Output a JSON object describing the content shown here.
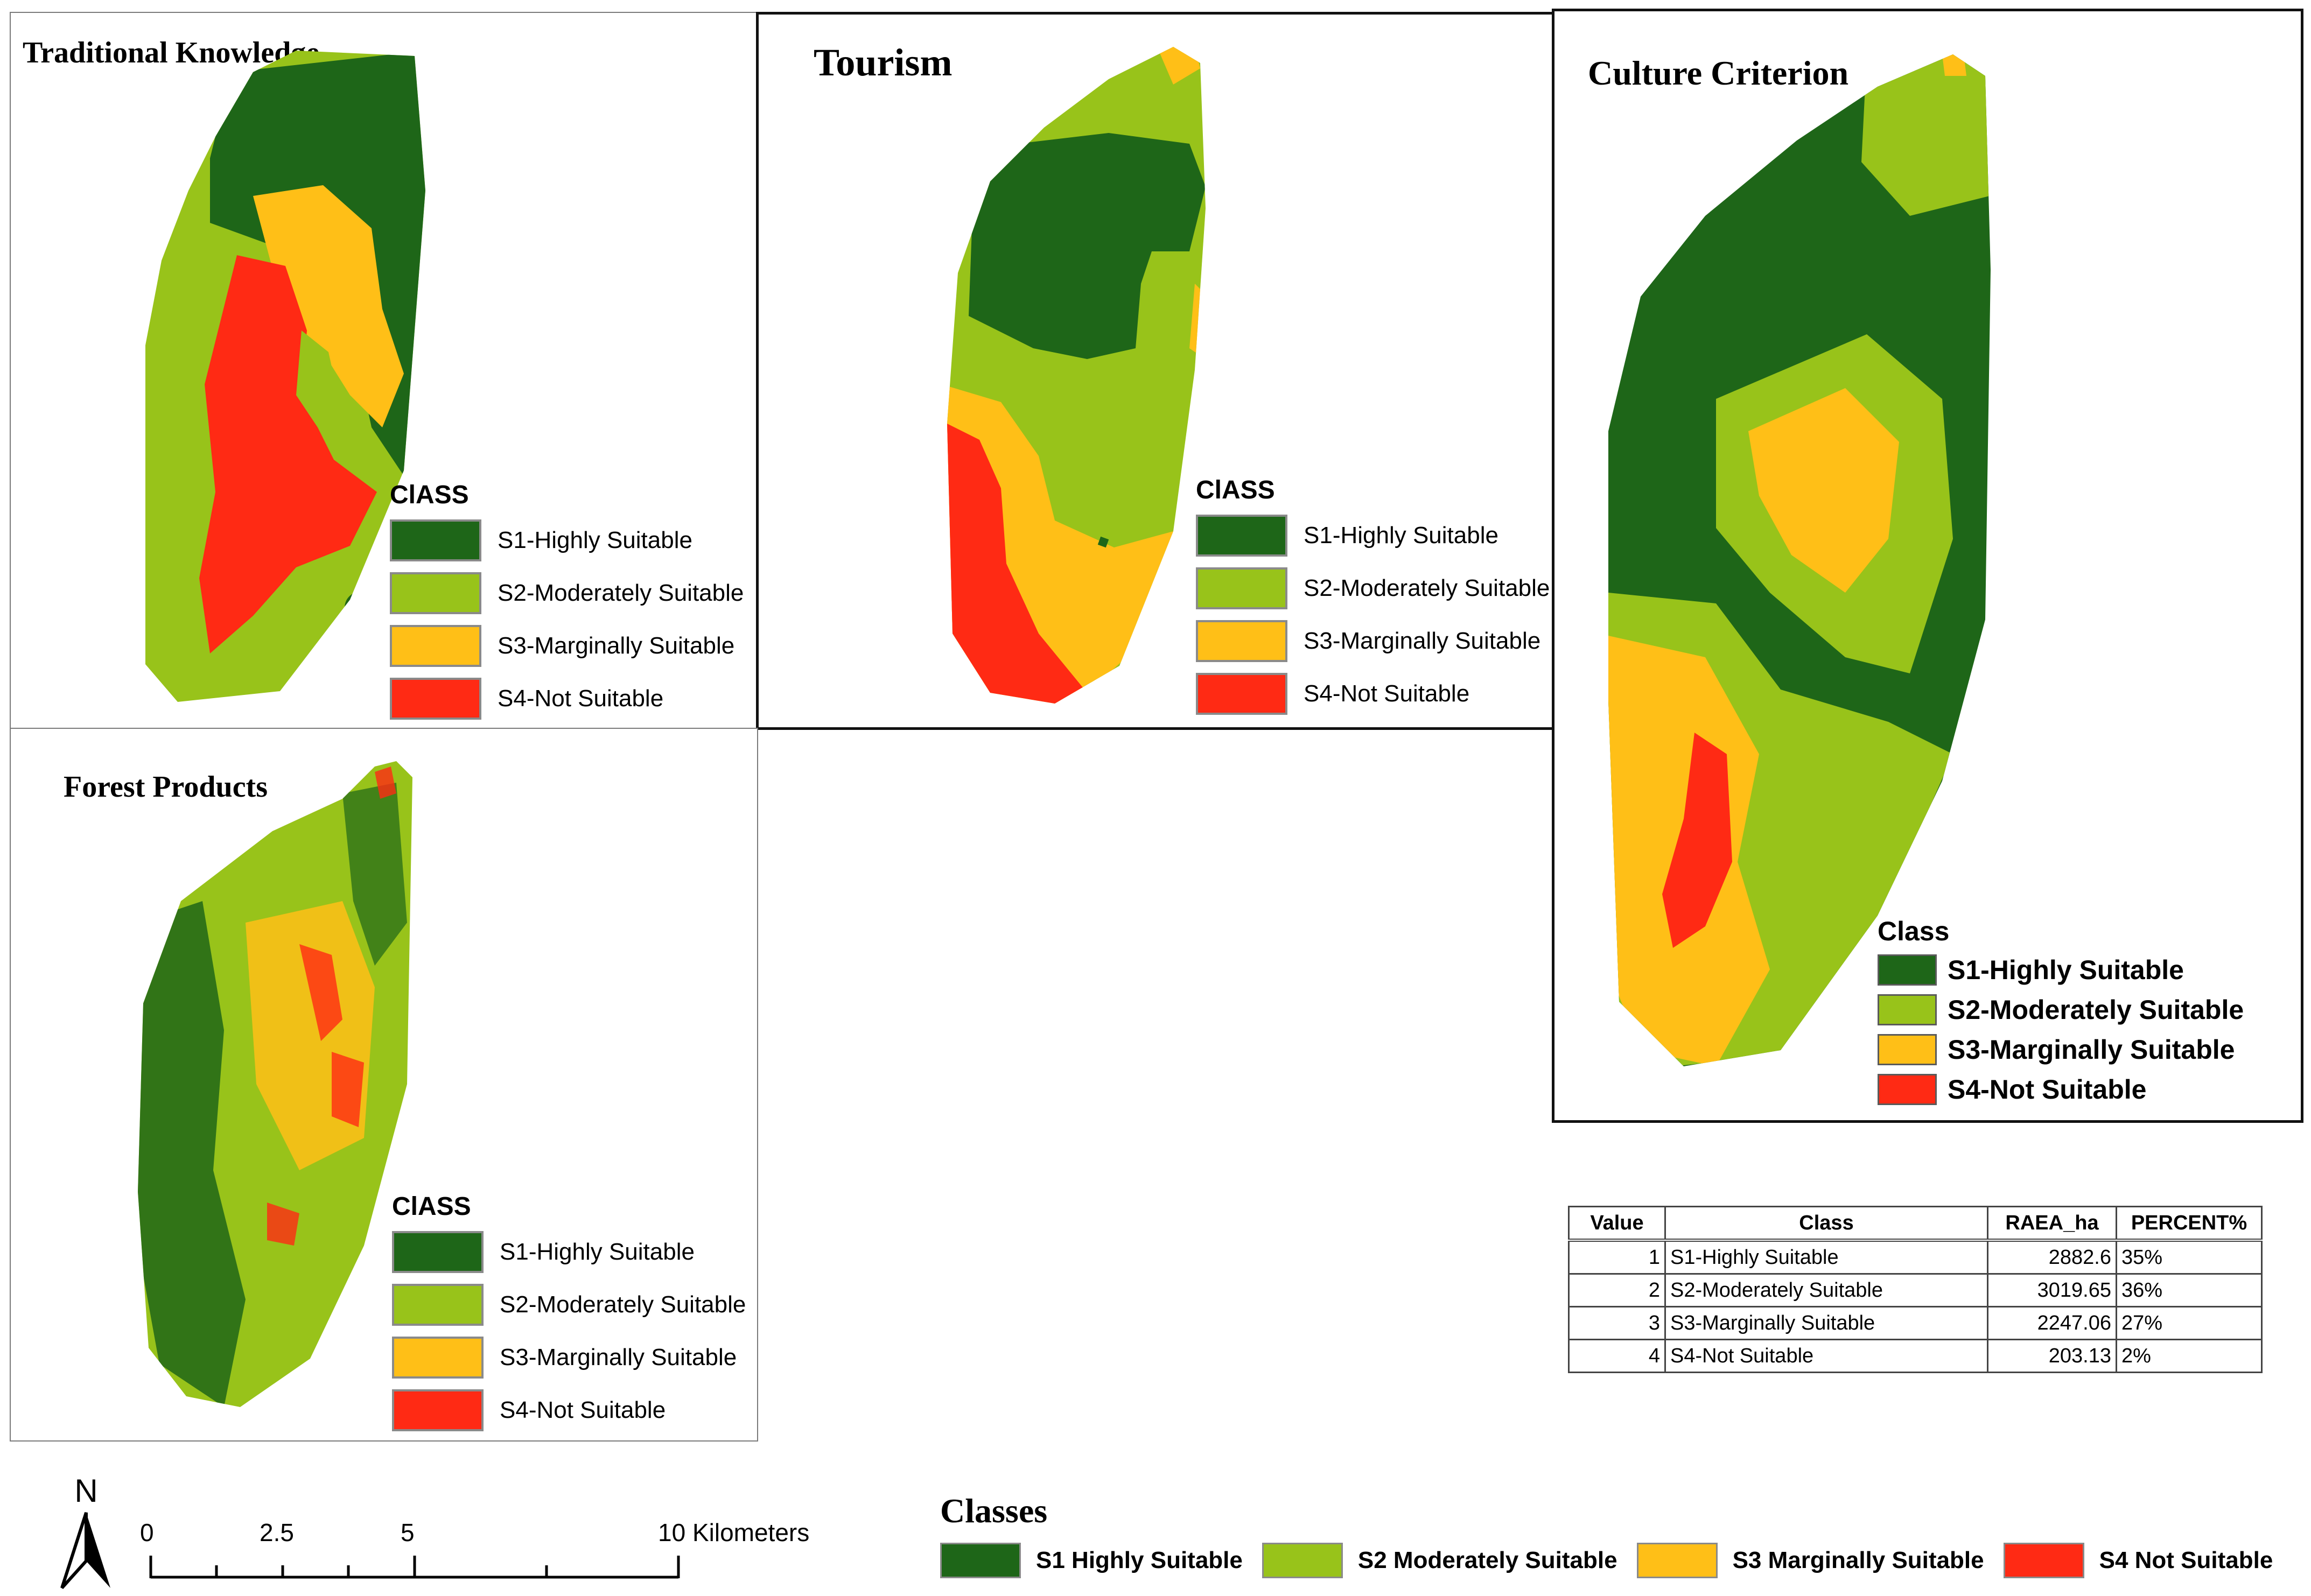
{
  "colors": {
    "s1": "#1e6618",
    "s2": "#98c31a",
    "s3": "#ffbf17",
    "s4": "#ff2a14"
  },
  "panels": {
    "traditional": {
      "title": "Traditional Knowledge",
      "legend_heading": "ClASS",
      "legend": [
        "S1-Highly Suitable",
        "S2-Moderately Suitable",
        "S3-Marginally Suitable",
        "S4-Not Suitable"
      ]
    },
    "tourism": {
      "title": "Tourism",
      "legend_heading": "ClASS",
      "legend": [
        "S1-Highly Suitable",
        "S2-Moderately Suitable",
        "S3-Marginally Suitable",
        "S4-Not Suitable"
      ]
    },
    "culture": {
      "title": "Culture Criterion",
      "legend_heading": "Class",
      "legend": [
        "S1-Highly Suitable",
        "S2-Moderately Suitable",
        "S3-Marginally Suitable",
        "S4-Not Suitable"
      ]
    },
    "forest": {
      "title": "Forest Products",
      "legend_heading": "ClASS",
      "legend": [
        "S1-Highly Suitable",
        "S2-Moderately Suitable",
        "S3-Marginally Suitable",
        "S4-Not Suitable"
      ]
    }
  },
  "table": {
    "headers": [
      "Value",
      "Class",
      "RAEA_ha",
      "PERCENT%"
    ],
    "rows": [
      [
        "1",
        "S1-Highly Suitable",
        "2882.6",
        "35%"
      ],
      [
        "2",
        "S2-Moderately Suitable",
        "3019.65",
        "36%"
      ],
      [
        "3",
        "S3-Marginally Suitable",
        "2247.06",
        "27%"
      ],
      [
        "4",
        "S4-Not Suitable",
        "203.13",
        "2%"
      ]
    ]
  },
  "north_arrow": {
    "label": "N"
  },
  "scale_bar": {
    "ticks": [
      "0",
      "2.5",
      "5",
      "10 Kilometers"
    ]
  },
  "classes_legend": {
    "heading": "Classes",
    "items": [
      "S1 Highly Suitable",
      "S2 Moderately Suitable",
      "S3 Marginally Suitable",
      "S4 Not Suitable"
    ]
  }
}
